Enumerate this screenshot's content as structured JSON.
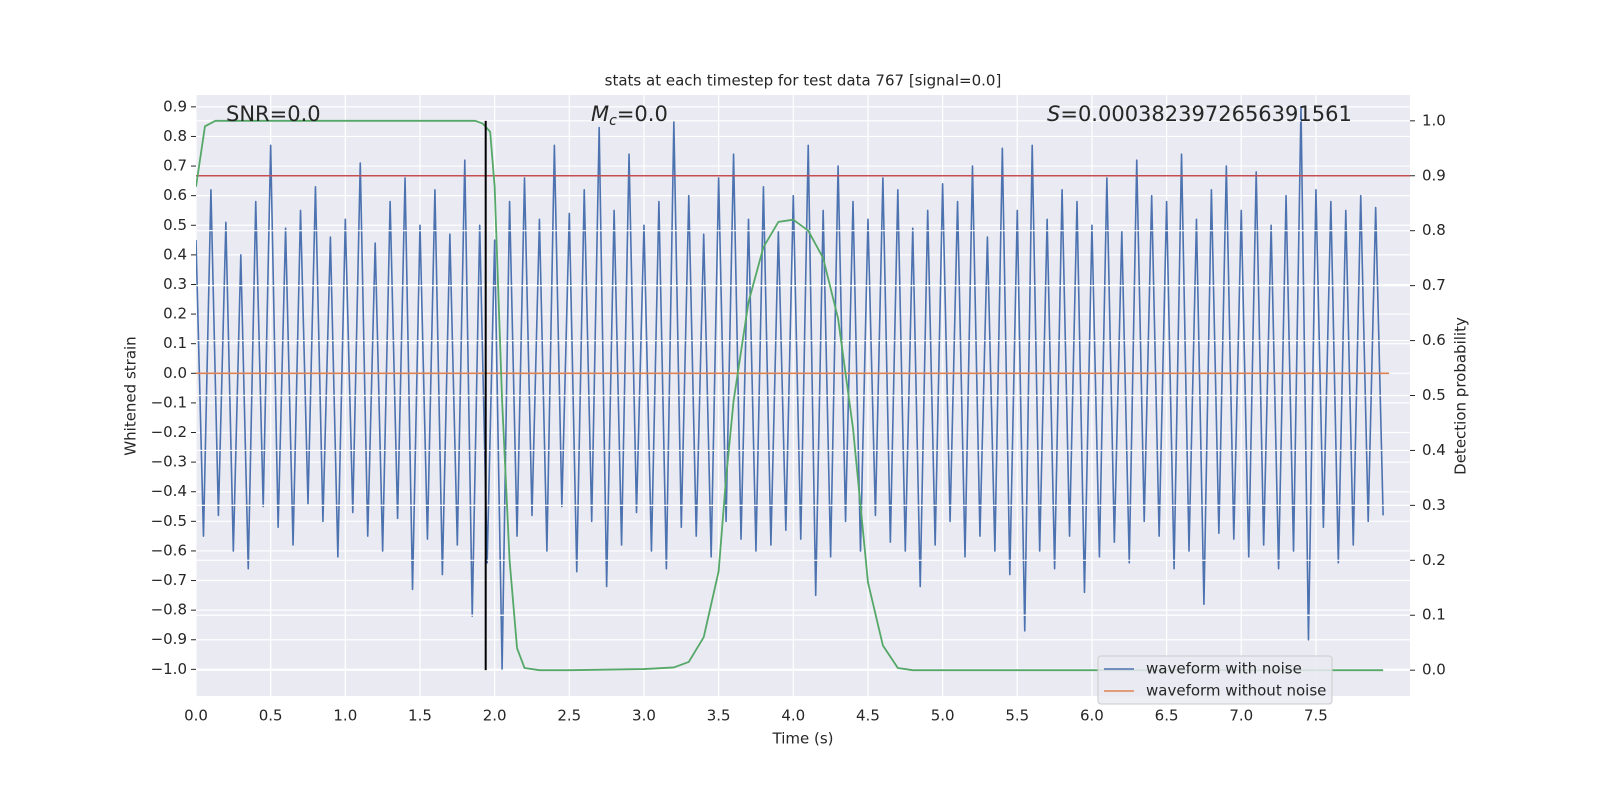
{
  "chart_data": {
    "type": "line",
    "title": "stats at each timestep for test data 767 [signal=0.0]",
    "x_label": "Time (s)",
    "y_label": "Whitened strain",
    "y2_label": "Detection probability",
    "annotations": [
      {
        "text": "SNR=0.0"
      },
      {
        "symbol": "M",
        "subscript": "c",
        "text": "=0.0"
      },
      {
        "symbol": "S",
        "text": "=0.0003823972656391561"
      }
    ],
    "xlim": [
      0,
      8.13
    ],
    "ylim": [
      -1.09,
      0.94
    ],
    "y2lim": [
      -0.047,
      1.047
    ],
    "grid": true,
    "legend": "lower right",
    "xticks": [
      {
        "value": 0,
        "label": "0.0"
      },
      {
        "value": 0.5,
        "label": "0.5"
      },
      {
        "value": 1,
        "label": "1.0"
      },
      {
        "value": 1.5,
        "label": "1.5"
      },
      {
        "value": 2,
        "label": "2.0"
      },
      {
        "value": 2.5,
        "label": "2.5"
      },
      {
        "value": 3,
        "label": "3.0"
      },
      {
        "value": 3.5,
        "label": "3.5"
      },
      {
        "value": 4,
        "label": "4.0"
      },
      {
        "value": 4.5,
        "label": "4.5"
      },
      {
        "value": 5,
        "label": "5.0"
      },
      {
        "value": 5.5,
        "label": "5.5"
      },
      {
        "value": 6,
        "label": "6.0"
      },
      {
        "value": 6.5,
        "label": "6.5"
      },
      {
        "value": 7,
        "label": "7.0"
      },
      {
        "value": 7.5,
        "label": "7.5"
      }
    ],
    "yticks": [
      {
        "value": -1,
        "label": "−1.0"
      },
      {
        "value": -0.9,
        "label": "−0.9"
      },
      {
        "value": -0.8,
        "label": "−0.8"
      },
      {
        "value": -0.7,
        "label": "−0.7"
      },
      {
        "value": -0.6,
        "label": "−0.6"
      },
      {
        "value": -0.5,
        "label": "−0.5"
      },
      {
        "value": -0.4,
        "label": "−0.4"
      },
      {
        "value": -0.3,
        "label": "−0.3"
      },
      {
        "value": -0.2,
        "label": "−0.2"
      },
      {
        "value": -0.1,
        "label": "−0.1"
      },
      {
        "value": 0,
        "label": "0.0"
      },
      {
        "value": 0.1,
        "label": "0.1"
      },
      {
        "value": 0.2,
        "label": "0.2"
      },
      {
        "value": 0.3,
        "label": "0.3"
      },
      {
        "value": 0.4,
        "label": "0.4"
      },
      {
        "value": 0.5,
        "label": "0.5"
      },
      {
        "value": 0.6,
        "label": "0.6"
      },
      {
        "value": 0.7,
        "label": "0.7"
      },
      {
        "value": 0.8,
        "label": "0.8"
      },
      {
        "value": 0.9,
        "label": "0.9"
      }
    ],
    "y2ticks": [
      {
        "value": 0,
        "label": "0.0"
      },
      {
        "value": 0.1,
        "label": "0.1"
      },
      {
        "value": 0.2,
        "label": "0.2"
      },
      {
        "value": 0.3,
        "label": "0.3"
      },
      {
        "value": 0.4,
        "label": "0.4"
      },
      {
        "value": 0.5,
        "label": "0.5"
      },
      {
        "value": 0.6,
        "label": "0.6"
      },
      {
        "value": 0.7,
        "label": "0.7"
      },
      {
        "value": 0.8,
        "label": "0.8"
      },
      {
        "value": 0.9,
        "label": "0.9"
      },
      {
        "value": 1,
        "label": "1.0"
      }
    ],
    "series": [
      {
        "name": "waveform with noise",
        "color": "#4c72b0",
        "x": [
          0,
          0.05,
          0.1,
          0.15,
          0.2,
          0.25,
          0.3,
          0.35,
          0.4,
          0.45,
          0.5,
          0.55,
          0.6,
          0.65,
          0.7,
          0.75,
          0.8,
          0.85,
          0.9,
          0.95,
          1,
          1.05,
          1.1,
          1.15,
          1.2,
          1.25,
          1.3,
          1.35,
          1.4,
          1.45,
          1.5,
          1.55,
          1.6,
          1.65,
          1.7,
          1.75,
          1.8,
          1.85,
          1.9,
          1.95,
          2,
          2.05,
          2.1,
          2.15,
          2.2,
          2.25,
          2.3,
          2.35,
          2.4,
          2.45,
          2.5,
          2.55,
          2.6,
          2.65,
          2.7,
          2.75,
          2.8,
          2.85,
          2.9,
          2.95,
          3,
          3.05,
          3.1,
          3.15,
          3.2,
          3.25,
          3.3,
          3.35,
          3.4,
          3.45,
          3.5,
          3.55,
          3.6,
          3.65,
          3.7,
          3.75,
          3.8,
          3.85,
          3.9,
          3.95,
          4,
          4.05,
          4.1,
          4.15,
          4.2,
          4.25,
          4.3,
          4.35,
          4.4,
          4.45,
          4.5,
          4.55,
          4.6,
          4.65,
          4.7,
          4.75,
          4.8,
          4.85,
          4.9,
          4.95,
          5,
          5.05,
          5.1,
          5.15,
          5.2,
          5.25,
          5.3,
          5.35,
          5.4,
          5.45,
          5.5,
          5.55,
          5.6,
          5.65,
          5.7,
          5.75,
          5.8,
          5.85,
          5.9,
          5.95,
          6,
          6.05,
          6.1,
          6.15,
          6.2,
          6.25,
          6.3,
          6.35,
          6.4,
          6.45,
          6.5,
          6.55,
          6.6,
          6.65,
          6.7,
          6.75,
          6.8,
          6.85,
          6.9,
          6.95,
          7,
          7.05,
          7.1,
          7.15,
          7.2,
          7.25,
          7.3,
          7.35,
          7.4,
          7.45,
          7.5,
          7.55,
          7.6,
          7.65,
          7.7,
          7.75,
          7.8,
          7.85,
          7.9,
          7.95
        ],
        "values": [
          0.45,
          -0.55,
          0.62,
          -0.48,
          0.51,
          -0.6,
          0.4,
          -0.66,
          0.58,
          -0.45,
          0.77,
          -0.52,
          0.49,
          -0.58,
          0.55,
          -0.44,
          0.63,
          -0.5,
          0.46,
          -0.62,
          0.52,
          -0.47,
          0.71,
          -0.55,
          0.44,
          -0.6,
          0.58,
          -0.49,
          0.66,
          -0.73,
          0.5,
          -0.56,
          0.62,
          -0.68,
          0.47,
          -0.58,
          0.72,
          -0.82,
          0.5,
          -0.64,
          0.45,
          -1.0,
          0.58,
          -0.55,
          0.66,
          -0.48,
          0.52,
          -0.6,
          0.77,
          -0.45,
          0.54,
          -0.67,
          0.62,
          -0.5,
          0.83,
          -0.72,
          0.55,
          -0.58,
          0.74,
          -0.47,
          0.5,
          -0.6,
          0.58,
          -0.66,
          0.85,
          -0.52,
          0.6,
          -0.55,
          0.47,
          -0.62,
          0.66,
          -0.5,
          0.74,
          -0.56,
          0.52,
          -0.6,
          0.63,
          -0.58,
          0.48,
          -0.53,
          0.6,
          -0.56,
          0.77,
          -0.75,
          0.55,
          -0.62,
          0.7,
          -0.5,
          0.58,
          -0.6,
          0.52,
          -0.48,
          0.66,
          -0.57,
          0.62,
          -0.6,
          0.49,
          -0.72,
          0.55,
          -0.58,
          0.64,
          -0.5,
          0.58,
          -0.62,
          0.7,
          -0.55,
          0.46,
          -0.6,
          0.76,
          -0.68,
          0.55,
          -0.87,
          0.77,
          -0.6,
          0.52,
          -0.66,
          0.62,
          -0.55,
          0.58,
          -0.74,
          0.5,
          -0.62,
          0.66,
          -0.57,
          0.48,
          -0.64,
          0.72,
          -0.5,
          0.6,
          -0.55,
          0.58,
          -0.66,
          0.74,
          -0.6,
          0.52,
          -0.78,
          0.62,
          -0.54,
          0.7,
          -0.56,
          0.55,
          -0.62,
          0.68,
          -0.58,
          0.5,
          -0.66,
          0.6,
          -0.6,
          0.9,
          -0.9,
          0.62,
          -0.52,
          0.58,
          -0.64,
          0.55,
          -0.58,
          0.6,
          -0.5,
          0.56,
          -0.48
        ]
      },
      {
        "name": "waveform without noise",
        "color": "#dd8452",
        "x": [
          0,
          7.99
        ],
        "values": [
          0,
          0
        ]
      }
    ],
    "y2_series": [
      {
        "color": "#55a868",
        "axis": "y2",
        "x": [
          0,
          0.06,
          0.13,
          0.5,
          1,
          1.5,
          1.87,
          1.92,
          1.97,
          2.0,
          2.05,
          2.1,
          2.15,
          2.2,
          2.3,
          2.5,
          3.0,
          3.2,
          3.3,
          3.4,
          3.45,
          3.5,
          3.55,
          3.6,
          3.7,
          3.8,
          3.9,
          4.0,
          4.1,
          4.2,
          4.3,
          4.4,
          4.5,
          4.6,
          4.7,
          4.8,
          5.0,
          6.0,
          7.0,
          7.95
        ],
        "values": [
          0.88,
          0.99,
          1.0,
          1.0,
          1.0,
          1.0,
          1.0,
          0.995,
          0.98,
          0.88,
          0.49,
          0.2,
          0.04,
          0.004,
          0.0,
          0.0,
          0.002,
          0.005,
          0.015,
          0.06,
          0.12,
          0.18,
          0.35,
          0.49,
          0.67,
          0.77,
          0.816,
          0.82,
          0.8,
          0.75,
          0.64,
          0.44,
          0.16,
          0.045,
          0.004,
          0.0,
          0.0,
          0.0,
          0.0,
          0.0
        ]
      }
    ],
    "hlines": [
      {
        "y2": 0.9,
        "color": "#c44e52"
      }
    ],
    "vlines": [
      {
        "x": 1.94,
        "y2range": [
          0,
          1
        ],
        "color": "#000000"
      }
    ]
  }
}
